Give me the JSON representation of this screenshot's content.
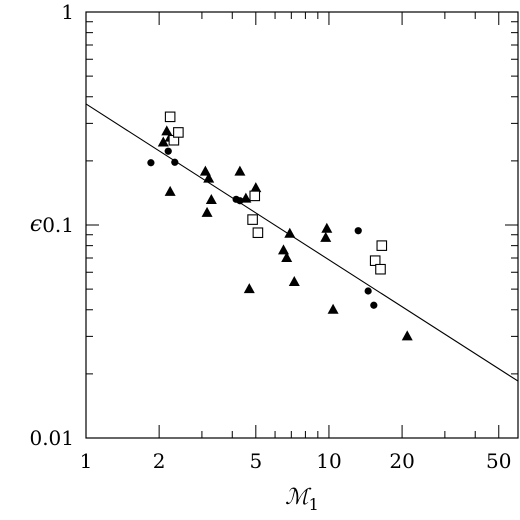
{
  "chart_data": {
    "type": "scatter",
    "title": "",
    "xlabel": "ℳ",
    "xlabel_subscript": "1",
    "ylabel": "ϵ",
    "xscale": "log",
    "yscale": "log",
    "xlim": [
      1,
      60
    ],
    "ylim": [
      0.01,
      1
    ],
    "x_ticks": [
      {
        "value": 1,
        "label": "1"
      },
      {
        "value": 2,
        "label": "2"
      },
      {
        "value": 5,
        "label": "5"
      },
      {
        "value": 10,
        "label": "10"
      },
      {
        "value": 20,
        "label": "20"
      },
      {
        "value": 50,
        "label": "50"
      }
    ],
    "y_ticks": [
      {
        "value": 0.01,
        "label": "0.01"
      },
      {
        "value": 0.1,
        "label": "0.1"
      },
      {
        "value": 1,
        "label": "1"
      }
    ],
    "grid": false,
    "legend": null,
    "series": [
      {
        "marker": "filled-circle",
        "points": [
          [
            1.85,
            0.196
          ],
          [
            2.18,
            0.222
          ],
          [
            2.32,
            0.197
          ],
          [
            4.15,
            0.132
          ],
          [
            4.3,
            0.13
          ],
          [
            13.2,
            0.094
          ],
          [
            14.5,
            0.049
          ],
          [
            15.3,
            0.042
          ]
        ]
      },
      {
        "marker": "filled-triangle",
        "points": [
          [
            2.08,
            0.244
          ],
          [
            2.15,
            0.275
          ],
          [
            2.22,
            0.257
          ],
          [
            2.22,
            0.143
          ],
          [
            3.1,
            0.178
          ],
          [
            3.2,
            0.165
          ],
          [
            3.28,
            0.131
          ],
          [
            3.15,
            0.114
          ],
          [
            4.3,
            0.178
          ],
          [
            4.55,
            0.133
          ],
          [
            5.0,
            0.149
          ],
          [
            4.7,
            0.05
          ],
          [
            6.5,
            0.076
          ],
          [
            6.7,
            0.07
          ],
          [
            6.9,
            0.091
          ],
          [
            7.2,
            0.054
          ],
          [
            9.8,
            0.096
          ],
          [
            9.7,
            0.087
          ],
          [
            10.4,
            0.04
          ],
          [
            21.0,
            0.03
          ]
        ]
      },
      {
        "marker": "open-square",
        "points": [
          [
            2.22,
            0.322
          ],
          [
            2.3,
            0.25
          ],
          [
            2.4,
            0.272
          ],
          [
            4.85,
            0.106
          ],
          [
            4.95,
            0.137
          ],
          [
            5.1,
            0.092
          ],
          [
            15.5,
            0.068
          ],
          [
            16.3,
            0.062
          ],
          [
            16.5,
            0.08
          ]
        ]
      }
    ],
    "fit_line": {
      "x": [
        1,
        60
      ],
      "y": [
        0.37,
        0.0185
      ]
    }
  },
  "colors": {
    "ink": "#000000",
    "background": "#ffffff"
  }
}
